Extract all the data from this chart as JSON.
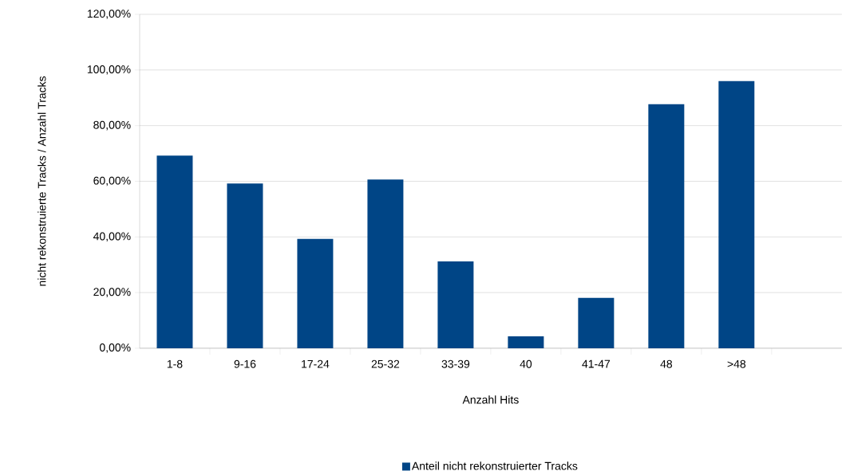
{
  "chart_data": {
    "type": "bar",
    "xlabel": "Anzahl Hits",
    "ylabel": "nicht rekonstruierte Tracks / Anzahl Tracks",
    "categories": [
      "1-8",
      "9-16",
      "17-24",
      "25-32",
      "33-39",
      "40",
      "41-47",
      "48",
      ">48",
      null
    ],
    "series": [
      {
        "name": "Anteil nicht rekonstruierter Tracks",
        "color": "#004586",
        "values": [
          69.2,
          59.2,
          39.3,
          60.6,
          31.2,
          4.3,
          18.1,
          87.7,
          96.0,
          null
        ]
      }
    ],
    "ylim": [
      0,
      120
    ],
    "yticks": [
      {
        "value": 0,
        "label": "0,00%"
      },
      {
        "value": 20,
        "label": "20,00%"
      },
      {
        "value": 40,
        "label": "40,00%"
      },
      {
        "value": 60,
        "label": "60,00%"
      },
      {
        "value": 80,
        "label": "80,00%"
      },
      {
        "value": 100,
        "label": "100,00%"
      },
      {
        "value": 120,
        "label": "120,00%"
      }
    ],
    "grid": "y",
    "legend": "bottom"
  }
}
